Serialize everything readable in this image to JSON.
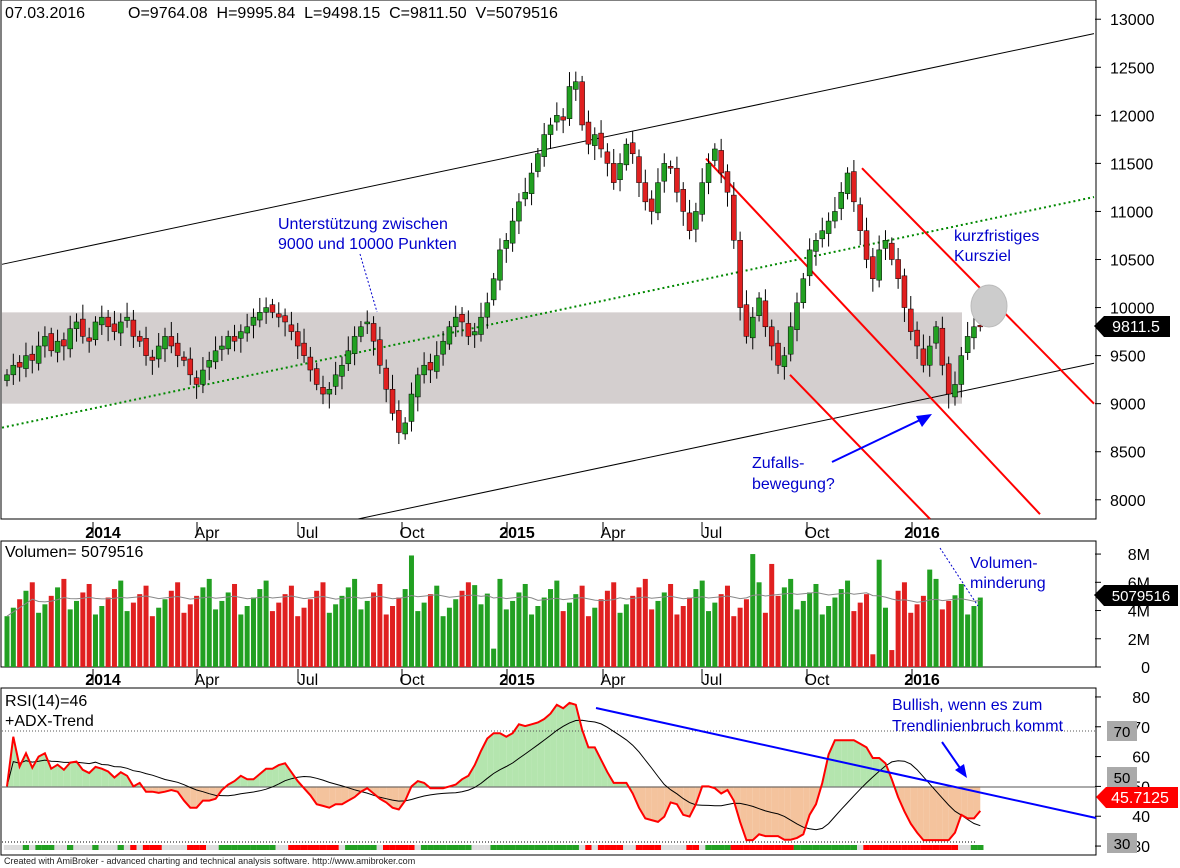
{
  "chart_data": [
    {
      "type": "candlestick",
      "header": {
        "date": "07.03.2016",
        "ohlcv": "O=9764.08  H=9995.84  L=9498.15  C=9811.50  V=5079516"
      },
      "y_ticks": [
        "13000",
        "12500",
        "12000",
        "11500",
        "11000",
        "10500",
        "10000",
        "9500",
        "9000",
        "8500",
        "8000"
      ],
      "x_ticks": [
        {
          "label": "2014",
          "bold": true
        },
        {
          "label": "Apr",
          "bold": false
        },
        {
          "label": "Jul",
          "bold": false
        },
        {
          "label": "Oct",
          "bold": false
        },
        {
          "label": "2015",
          "bold": true
        },
        {
          "label": "Apr",
          "bold": false
        },
        {
          "label": "Jul",
          "bold": false
        },
        {
          "label": "Oct",
          "bold": false
        },
        {
          "label": "2016",
          "bold": true
        }
      ],
      "last_price_label": "9811.5",
      "ylim": [
        7800,
        13200
      ],
      "support_zone": [
        9000,
        9950
      ],
      "annotations": {
        "support": [
          "Unterstützung zwischen",
          "9000 und 10000 Punkten"
        ],
        "target": [
          "kurzfristiges",
          "Kursziel"
        ],
        "random": [
          "Zufalls-",
          "bewegung?"
        ]
      },
      "closes": [
        9300,
        9400,
        9380,
        9500,
        9450,
        9600,
        9700,
        9550,
        9650,
        9600,
        9780,
        9850,
        9700,
        9650,
        9850,
        9900,
        9800,
        9750,
        9850,
        9900,
        9700,
        9650,
        9500,
        9450,
        9600,
        9700,
        9600,
        9500,
        9450,
        9300,
        9200,
        9350,
        9450,
        9550,
        9600,
        9700,
        9650,
        9750,
        9800,
        9900,
        9950,
        10000,
        9950,
        9900,
        9850,
        9750,
        9600,
        9500,
        9350,
        9200,
        9100,
        9150,
        9300,
        9400,
        9550,
        9700,
        9800,
        9850,
        9650,
        9400,
        9150,
        8900,
        8700,
        8800,
        9100,
        9300,
        9400,
        9350,
        9500,
        9650,
        9800,
        9900,
        9850,
        9700,
        9750,
        9900,
        10050,
        10300,
        10600,
        10700,
        10900,
        11100,
        11200,
        11400,
        11600,
        11800,
        11900,
        12000,
        11950,
        12300,
        12350,
        11900,
        11700,
        11800,
        11650,
        11500,
        11300,
        11500,
        11700,
        11600,
        11300,
        11100,
        11000,
        11300,
        11500,
        11450,
        11200,
        11000,
        10800,
        11000,
        11300,
        11500,
        11650,
        11400,
        11200,
        10700,
        10000,
        9700,
        9900,
        10100,
        9800,
        9600,
        9400,
        9500,
        9800,
        10050,
        10300,
        10600,
        10700,
        10800,
        10900,
        11000,
        11200,
        11400,
        11100,
        10800,
        10500,
        10300,
        10600,
        10700,
        10500,
        10300,
        10000,
        9750,
        9600,
        9400,
        9600,
        9800,
        9400,
        9100,
        9200,
        9500,
        9700,
        9800,
        9811.5
      ],
      "title": ""
    },
    {
      "type": "bar",
      "label": "Volumen= 5079516",
      "y_ticks": [
        "8M",
        "6M",
        "4M",
        "2M",
        "0"
      ],
      "x_ticks": [
        "2014",
        "Apr",
        "Jul",
        "Oct",
        "2015",
        "Apr",
        "Jul",
        "Oct",
        "2016"
      ],
      "last_value_label": "5079516",
      "annotation": [
        "Volumen-",
        "minderung"
      ],
      "ylim": [
        0,
        8500000
      ]
    },
    {
      "type": "line",
      "label_line1": "RSI(14)=46",
      "label_line2": "+ADX-Trend",
      "y_ticks": [
        "80",
        "70",
        "60",
        "50",
        "40",
        "30"
      ],
      "level_labels": [
        "70",
        "50",
        "30"
      ],
      "last_value_label": "45.7125",
      "annotation": [
        "Bullish, wenn es zum",
        "Trendlinienbruch kommt"
      ],
      "ylim": [
        27,
        83
      ],
      "reference_lines": [
        70,
        50
      ]
    }
  ],
  "footer": {
    "text": "Created with AmiBroker - advanced charting and technical analysis software. http://www.amibroker.com"
  },
  "colors": {
    "up": "#22a022",
    "down": "#e02020",
    "channel_red": "#ff0000",
    "trend_blue": "#0000ff",
    "support_zone": "#d4cfcf",
    "annotation_text": "#0000cc",
    "rsi_line": "#ff0000",
    "grid_dotted": "#008800"
  }
}
